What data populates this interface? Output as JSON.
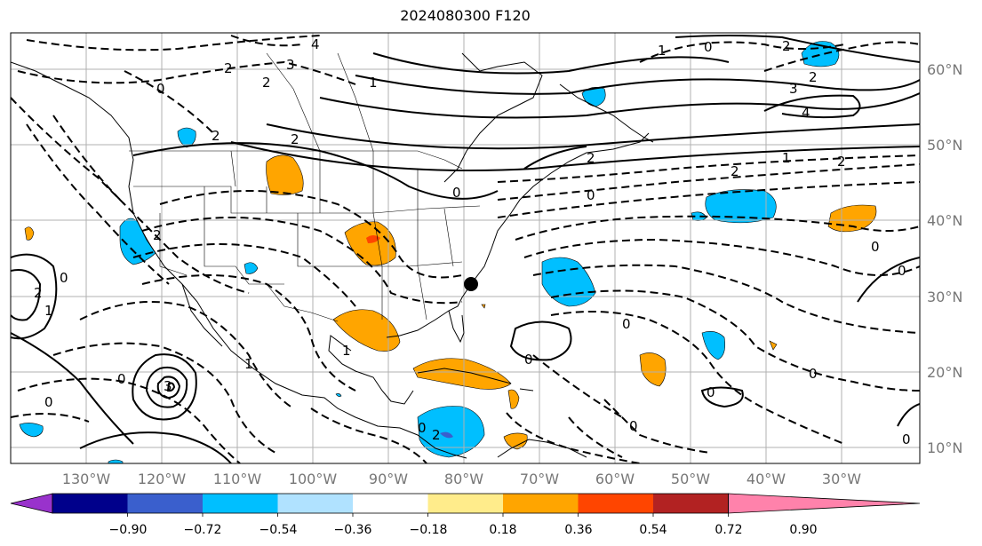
{
  "title": "2024080300 F120",
  "lon_labels": [
    "130°W",
    "120°W",
    "110°W",
    "100°W",
    "90°W",
    "80°W",
    "70°W",
    "60°W",
    "50°W",
    "40°W",
    "30°W"
  ],
  "lat_labels": [
    "60°N",
    "50°N",
    "40°N",
    "30°N",
    "20°N",
    "10°N"
  ],
  "colorbar": {
    "colors": [
      "#9932cc",
      "#00008b",
      "#3a5fcd",
      "#00bfff",
      "#b0e2ff",
      "#ffffff",
      "#ffec8b",
      "#ffa500",
      "#ff4500",
      "#b22222",
      "#ff82ab"
    ],
    "labels": [
      "−0.90",
      "−0.72",
      "−0.54",
      "−0.36",
      "−0.18",
      "0.18",
      "0.36",
      "0.54",
      "0.72",
      "0.90"
    ]
  },
  "contour_labels": [
    "4",
    "3",
    "2",
    "2",
    "0",
    "1",
    "2",
    "2",
    "3",
    "4",
    "2",
    "2",
    "1",
    "0",
    "2",
    "0",
    "2",
    "1",
    "2",
    "2",
    "0",
    "0",
    "0",
    "0",
    "1",
    "3",
    "0",
    "0",
    "2",
    "1",
    "0",
    "0",
    "0",
    "0",
    "1",
    "0",
    "2",
    "0",
    "0"
  ]
}
